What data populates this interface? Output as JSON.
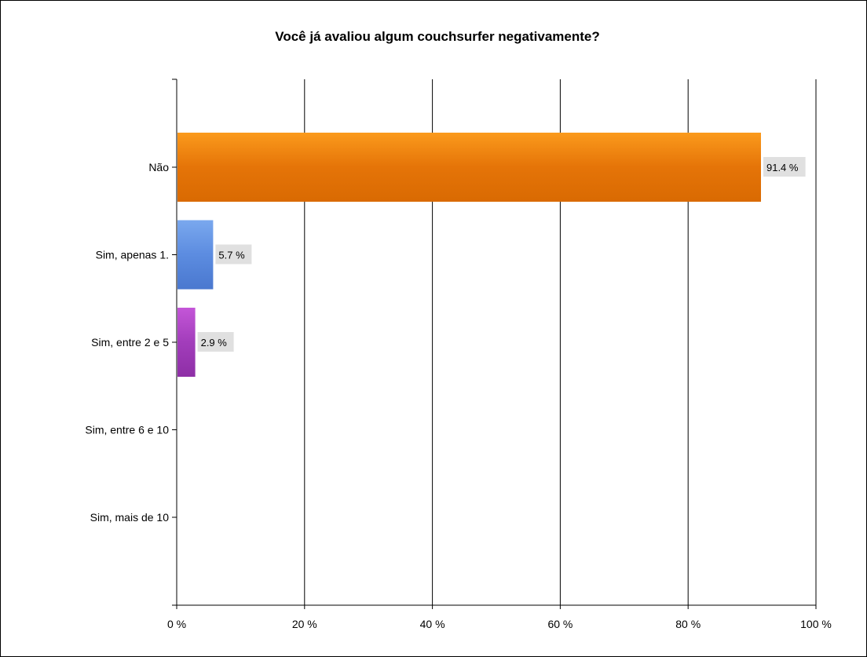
{
  "chart_data": {
    "type": "bar",
    "orientation": "horizontal",
    "title": "Você já avaliou algum couchsurfer negativamente?",
    "categories": [
      "Não",
      "Sim, apenas 1.",
      "Sim, entre 2 e 5",
      "Sim, entre 6 e 10",
      "Sim, mais de 10"
    ],
    "values": [
      91.4,
      5.7,
      2.9,
      0,
      0
    ],
    "data_labels": [
      "91.4 %",
      "5.7 %",
      "2.9 %",
      "",
      ""
    ],
    "bar_colors": [
      [
        "#fb9a1c",
        "#e57408",
        "#d96a02"
      ],
      [
        "#7aa8ee",
        "#5c8ce0",
        "#4a78cf"
      ],
      [
        "#c456d8",
        "#a23dbb",
        "#8e2fa6"
      ],
      [
        "#cccccc",
        "#bbbbbb",
        "#aaaaaa"
      ],
      [
        "#cccccc",
        "#bbbbbb",
        "#aaaaaa"
      ]
    ],
    "x_ticks": [
      0,
      20,
      40,
      60,
      80,
      100
    ],
    "x_tick_labels": [
      "0 %",
      "20 %",
      "40 %",
      "60 %",
      "80 %",
      "100 %"
    ],
    "xlim": [
      0,
      100
    ],
    "grid": true,
    "label_background": "#e0e0e0"
  }
}
